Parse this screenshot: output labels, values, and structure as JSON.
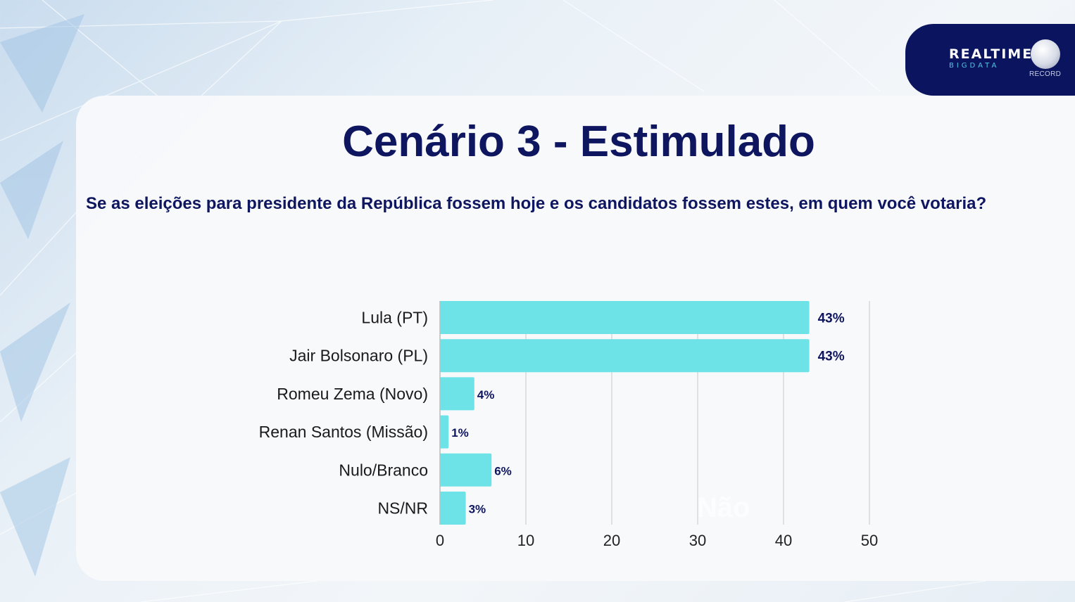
{
  "brand": {
    "name": "REALTIME",
    "sub": "BIGDATA",
    "partner": "RECORD"
  },
  "title": "Cenário 3 - Estimulado",
  "question": "Se as eleições para presidente da República fossem hoje e os candidatos fossem estes, em quem você votaria?",
  "faint_text": "Não",
  "colors": {
    "bar": "#6de3e8",
    "text": "#0f1660",
    "grid": "#c8c8c8",
    "brand_bg": "#0b145e"
  },
  "chart_data": {
    "type": "bar",
    "orientation": "horizontal",
    "categories": [
      "Lula (PT)",
      "Jair Bolsonaro (PL)",
      "Romeu Zema (Novo)",
      "Renan Santos (Missão)",
      "Nulo/Branco",
      "NS/NR"
    ],
    "values": [
      43,
      43,
      4,
      1,
      6,
      3
    ],
    "data_labels": [
      "43%",
      "43%",
      "4%",
      "1%",
      "6%",
      "3%"
    ],
    "xlim": [
      0,
      50
    ],
    "xticks": [
      "0",
      "10",
      "20",
      "30",
      "40",
      "50"
    ],
    "grid": true,
    "legend": "none"
  }
}
